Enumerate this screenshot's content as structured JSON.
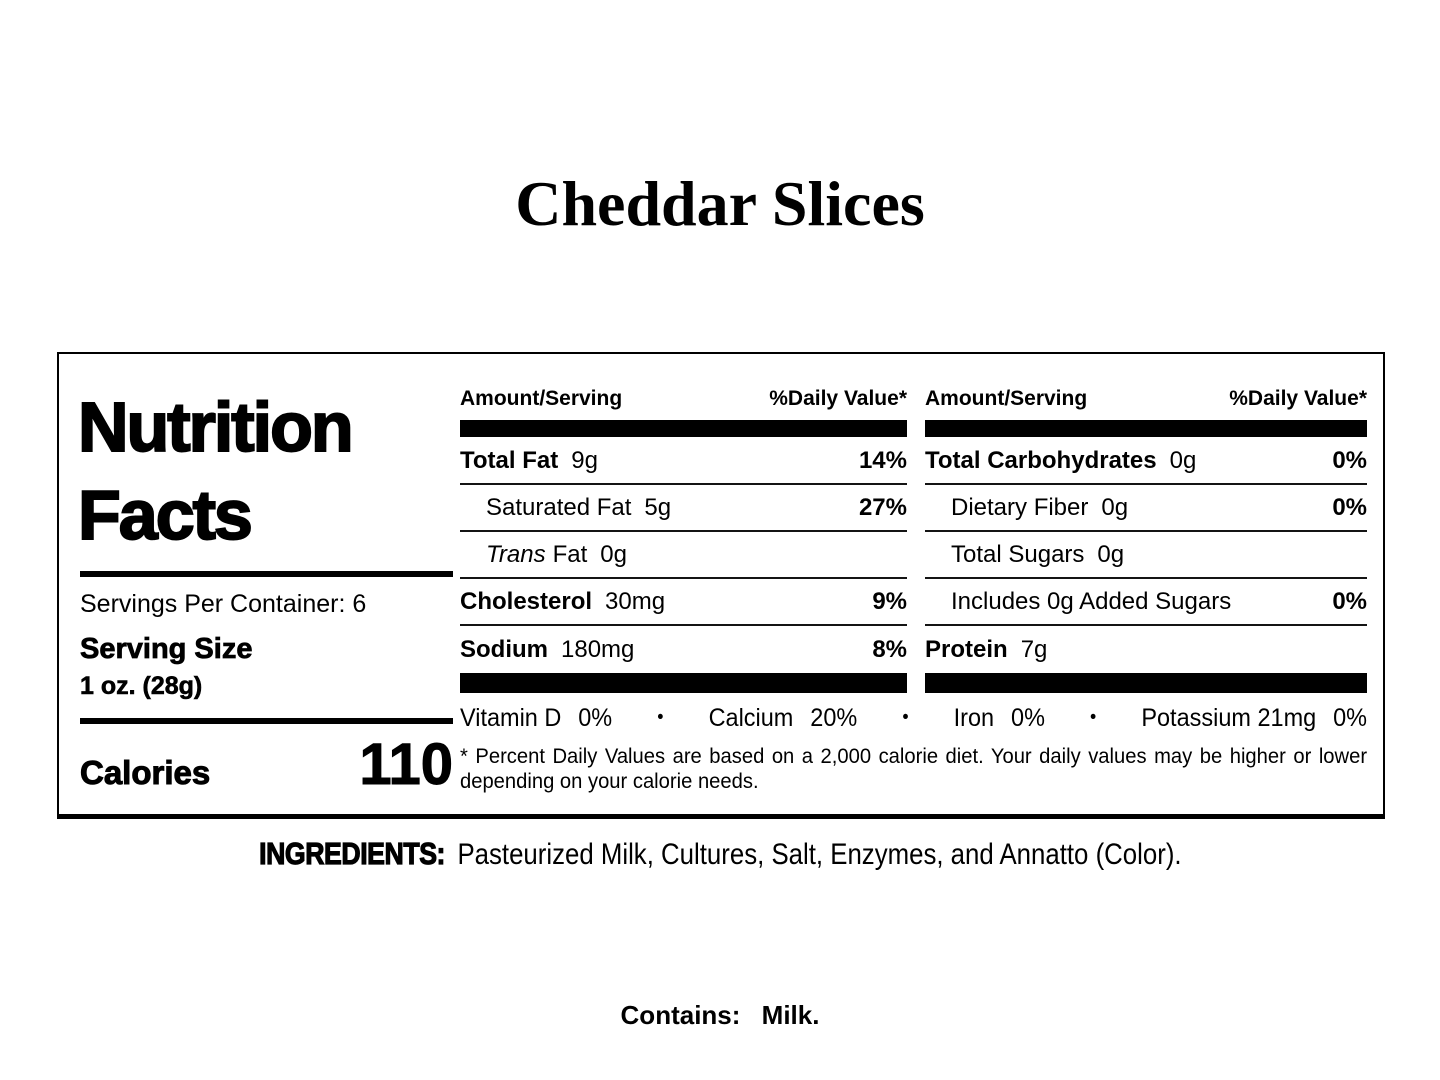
{
  "page": {
    "title": "Cheddar Slices"
  },
  "panel": {
    "heading_line1": "Nutrition",
    "heading_line2": "Facts",
    "servings_per_container": "Servings Per Container: 6",
    "serving_size_label": "Serving Size",
    "serving_size_value": "1 oz. (28g)",
    "calories_label": "Calories",
    "calories_value": "110",
    "col_header_amount": "Amount/Serving",
    "col_header_dv": "%Daily Value*",
    "bullet": "•",
    "fat_rows": [
      {
        "name": "Total Fat",
        "amount": "9g",
        "dv": "14%"
      },
      {
        "name": "Saturated Fat",
        "amount": "5g",
        "dv": "27%"
      },
      {
        "name_italic": "Trans",
        "name": "Fat",
        "amount": "0g",
        "dv": ""
      },
      {
        "name": "Cholesterol",
        "amount": "30mg",
        "dv": "9%"
      },
      {
        "name": "Sodium",
        "amount": "180mg",
        "dv": "8%"
      }
    ],
    "carb_rows": [
      {
        "name": "Total Carbohydrates",
        "amount": "0g",
        "dv": "0%"
      },
      {
        "name": "Dietary Fiber",
        "amount": "0g",
        "dv": "0%"
      },
      {
        "name": "Total Sugars",
        "amount": "0g",
        "dv": ""
      },
      {
        "name": "Includes 0g Added Sugars",
        "amount": "",
        "dv": "0%"
      },
      {
        "name": "Protein",
        "amount": "7g",
        "dv": ""
      }
    ],
    "micronutrients": [
      {
        "name": "Vitamin D",
        "value": "0%"
      },
      {
        "name": "Calcium",
        "value": "20%"
      },
      {
        "name": "Iron",
        "value": "0%"
      },
      {
        "name": "Potassium 21mg",
        "value": "0%"
      }
    ],
    "footnote": "* Percent Daily Values are based on a 2,000 calorie diet. Your daily values may be higher or lower depending on your calorie needs."
  },
  "ingredients": {
    "label": "INGREDIENTS:",
    "text": "Pasteurized Milk, Cultures, Salt, Enzymes, and Annatto (Color)."
  },
  "contains": {
    "label": "Contains:",
    "value": "Milk."
  }
}
